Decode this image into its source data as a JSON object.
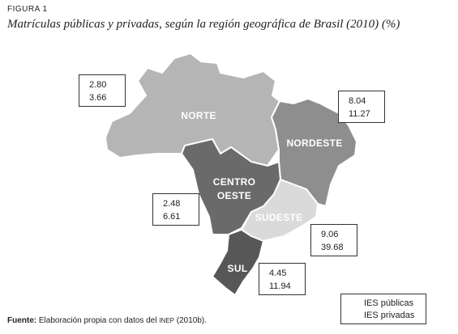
{
  "figure": {
    "label": "FIGURA 1",
    "title": "Matrículas públicas y privadas, según la región geográfica de Brasil (2010) (%)"
  },
  "regions": [
    {
      "id": "norte",
      "name": "NORTE",
      "color": "#b5b5b5",
      "publicas": "2.80",
      "privadas": "3.66"
    },
    {
      "id": "nordeste",
      "name": "NORDESTE",
      "color": "#8e8e8e",
      "publicas": "8.04",
      "privadas": "11.27"
    },
    {
      "id": "centro-oeste",
      "name_line1": "CENTRO",
      "name_line2": "OESTE",
      "color": "#6a6a6a",
      "publicas": "2.48",
      "privadas": "6.61"
    },
    {
      "id": "sudeste",
      "name": "SUDESTE",
      "color": "#dadada",
      "publicas": "9.06",
      "privadas": "39.68"
    },
    {
      "id": "sul",
      "name": "SUL",
      "color": "#575757",
      "publicas": "4.45",
      "privadas": "11.94"
    }
  ],
  "legend": {
    "publicas": "IES públicas",
    "privadas": "IES privadas"
  },
  "source": {
    "label": "Fuente:",
    "text_before": " Elaboración propia con datos del ",
    "abbrev": "INEP",
    "text_after": " (2010b)."
  }
}
